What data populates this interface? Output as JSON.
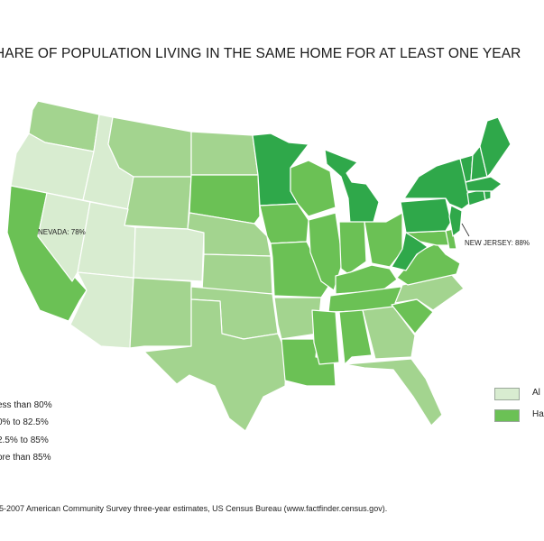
{
  "title": "HARE OF POPULATION LIVING IN THE SAME HOME FOR AT LEAST ONE YEAR",
  "colors": {
    "lt80": "#d8ecd0",
    "80to825": "#a3d48f",
    "825to85": "#6bc155",
    "gt85": "#2fa84a",
    "border": "#ffffff"
  },
  "legend": {
    "items": [
      {
        "label": "ess than 80%",
        "color": "#d8ecd0"
      },
      {
        "label": "0% to 82.5%",
        "color": "#a3d48f"
      },
      {
        "label": "2.5% to 85%",
        "color": "#6bc155"
      },
      {
        "label": "ore than 85%",
        "color": "#2fa84a"
      }
    ]
  },
  "insets": {
    "alaska": {
      "label": "Al",
      "category": "lt80"
    },
    "hawaii": {
      "label": "Ha",
      "category": "825to85"
    }
  },
  "annotations": {
    "nevada": "NEVADA: 78%",
    "new_jersey": "NEW JERSEY: 88%"
  },
  "states": [
    {
      "name": "Washington",
      "category": "80to825"
    },
    {
      "name": "Oregon",
      "category": "lt80"
    },
    {
      "name": "California",
      "category": "825to85"
    },
    {
      "name": "Nevada",
      "category": "lt80"
    },
    {
      "name": "Idaho",
      "category": "lt80"
    },
    {
      "name": "Montana",
      "category": "80to825"
    },
    {
      "name": "Wyoming",
      "category": "80to825"
    },
    {
      "name": "Utah",
      "category": "lt80"
    },
    {
      "name": "Arizona",
      "category": "lt80"
    },
    {
      "name": "Colorado",
      "category": "lt80"
    },
    {
      "name": "New Mexico",
      "category": "80to825"
    },
    {
      "name": "North Dakota",
      "category": "80to825"
    },
    {
      "name": "South Dakota",
      "category": "825to85"
    },
    {
      "name": "Nebraska",
      "category": "80to825"
    },
    {
      "name": "Kansas",
      "category": "80to825"
    },
    {
      "name": "Oklahoma",
      "category": "80to825"
    },
    {
      "name": "Texas",
      "category": "80to825"
    },
    {
      "name": "Minnesota",
      "category": "gt85"
    },
    {
      "name": "Iowa",
      "category": "825to85"
    },
    {
      "name": "Missouri",
      "category": "825to85"
    },
    {
      "name": "Arkansas",
      "category": "80to825"
    },
    {
      "name": "Louisiana",
      "category": "825to85"
    },
    {
      "name": "Wisconsin",
      "category": "825to85"
    },
    {
      "name": "Illinois",
      "category": "825to85"
    },
    {
      "name": "Michigan",
      "category": "gt85"
    },
    {
      "name": "Indiana",
      "category": "825to85"
    },
    {
      "name": "Ohio",
      "category": "825to85"
    },
    {
      "name": "Kentucky",
      "category": "825to85"
    },
    {
      "name": "Tennessee",
      "category": "825to85"
    },
    {
      "name": "Mississippi",
      "category": "825to85"
    },
    {
      "name": "Alabama",
      "category": "825to85"
    },
    {
      "name": "Georgia",
      "category": "80to825"
    },
    {
      "name": "Florida",
      "category": "80to825"
    },
    {
      "name": "South Carolina",
      "category": "825to85"
    },
    {
      "name": "North Carolina",
      "category": "80to825"
    },
    {
      "name": "Virginia",
      "category": "825to85"
    },
    {
      "name": "West Virginia",
      "category": "gt85"
    },
    {
      "name": "Maryland",
      "category": "825to85"
    },
    {
      "name": "Delaware",
      "category": "825to85"
    },
    {
      "name": "Pennsylvania",
      "category": "gt85"
    },
    {
      "name": "New Jersey",
      "category": "gt85"
    },
    {
      "name": "New York",
      "category": "gt85"
    },
    {
      "name": "Connecticut",
      "category": "gt85"
    },
    {
      "name": "Rhode Island",
      "category": "gt85"
    },
    {
      "name": "Massachusetts",
      "category": "gt85"
    },
    {
      "name": "Vermont",
      "category": "gt85"
    },
    {
      "name": "New Hampshire",
      "category": "gt85"
    },
    {
      "name": "Maine",
      "category": "gt85"
    }
  ],
  "source": "05-2007 American Community Survey three-year estimates, US Census Bureau (www.factfinder.census.gov)."
}
